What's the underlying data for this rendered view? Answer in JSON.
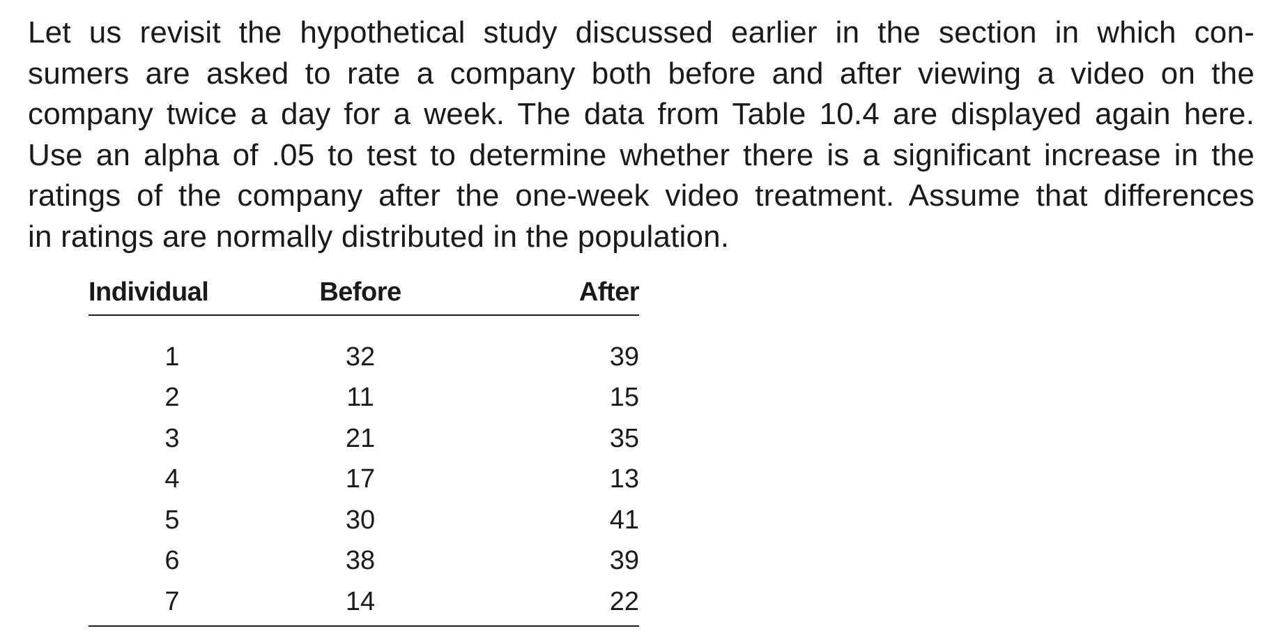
{
  "paragraph": {
    "lines": [
      "Let us revisit the hypothetical study discussed earlier in the section in which con-",
      "sumers are asked to rate a company both before and after viewing a video on the",
      "company twice a day for a week. The data from Table 10.4 are displayed again here.",
      "Use an alpha of .05 to test to determine whether there is a significant increase in the",
      "ratings of the company after the one-week video treatment. Assume that differences",
      "in ratings are normally distributed in the population."
    ]
  },
  "table": {
    "headers": [
      "Individual",
      "Before",
      "After"
    ],
    "rows": [
      [
        "1",
        "32",
        "39"
      ],
      [
        "2",
        "11",
        "15"
      ],
      [
        "3",
        "21",
        "35"
      ],
      [
        "4",
        "17",
        "13"
      ],
      [
        "5",
        "30",
        "41"
      ],
      [
        "6",
        "38",
        "39"
      ],
      [
        "7",
        "14",
        "22"
      ]
    ]
  }
}
